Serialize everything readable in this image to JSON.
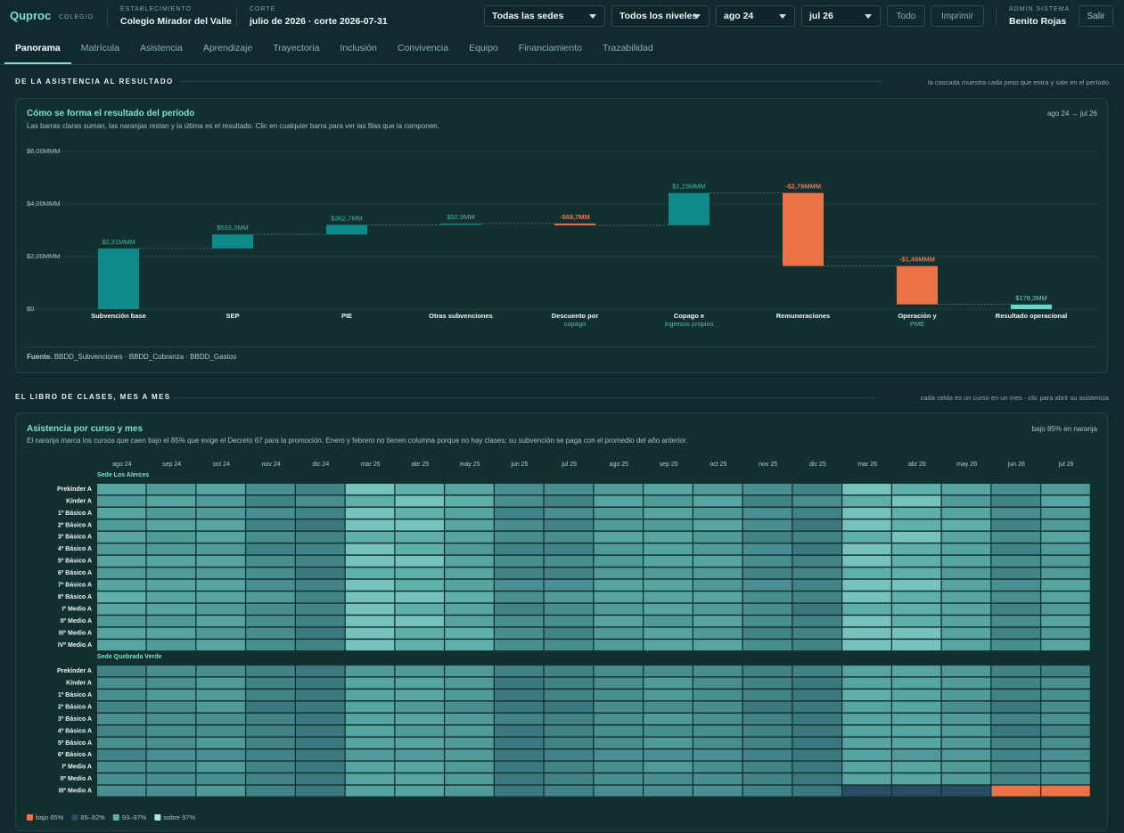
{
  "header": {
    "brand": "Quproc",
    "brand_sub": "COLEGIO",
    "school_label": "ESTABLECIMIENTO",
    "school": "Colegio Mirador del Valle",
    "cut_label": "CORTE",
    "cut": "julio de 2026 · corte 2026-07-31",
    "filters": [
      "Todas las sedes",
      "Todos los niveles",
      "ago 24",
      "jul 26"
    ],
    "buttons": [
      "Todo",
      "Imprimir"
    ],
    "user_role": "ADMIN SISTEMA",
    "user_name": "Benito Rojas",
    "logout": "Salir"
  },
  "tabs": [
    "Panorama",
    "Matrícula",
    "Asistencia",
    "Aprendizaje",
    "Trayectoria",
    "Inclusión",
    "Convivencia",
    "Equipo",
    "Financiamiento",
    "Trazabilidad"
  ],
  "active_tab": 0,
  "sections": [
    {
      "title": "DE LA ASISTENCIA AL RESULTADO",
      "note": "la cascada muestra cada peso que entra y sale en el período"
    },
    {
      "title": "EL LIBRO DE CLASES, MES A MES",
      "note": "cada celda es un curso en un mes · clic para abrir su asistencia"
    }
  ],
  "cards": [
    {
      "title": "Cómo se forma el resultado del período",
      "subtitle": "Las barras claras suman, las naranjas restan y la última es el resultado. Clic en cualquier barra para ver las filas que la componen.",
      "range": "ago 24 → jul 26",
      "source_label": "Fuente.",
      "source": "BBDD_Subvenciones · BBDD_Cobranza · BBDD_Gastos"
    },
    {
      "title": "Asistencia por curso y mes",
      "subtitle": "El naranja marca los cursos que caen bajo el 85% que exige el Decreto 67 para la promoción. Enero y febrero no tienen columna porque no hay clases; su subvención se paga con el promedio del año anterior.",
      "note": "bajo 85% en naranja"
    }
  ],
  "chart_data": [
    {
      "type": "waterfall",
      "categories": [
        "Subvención base",
        "SEP",
        "PIE",
        "Otras subvenciones",
        "Descuento por",
        "Copago e",
        "Remuneraciones",
        "Operación y",
        "Resultado operacional"
      ],
      "category_notes": [
        null,
        null,
        null,
        null,
        "copago",
        "ingresos propios",
        null,
        "PME",
        null
      ],
      "values": [
        2310,
        533.3,
        362.7,
        52.9,
        -68.7,
        1230,
        -2780,
        -1460,
        176.3
      ],
      "value_labels": [
        "$2,31MMM",
        "$533,3MM",
        "$362,7MM",
        "$52,9MM",
        "-$68,7MM",
        "$1,23MMM",
        "-$2,78MMM",
        "-$1,46MMM",
        "$176,3MM"
      ],
      "colors": {
        "increase": "#0e8a8a",
        "decrease": "#ea7448",
        "total": "#63d8ca"
      },
      "ylim": [
        0,
        6000
      ],
      "yticks": [
        {
          "value": 0,
          "label": "$0"
        },
        {
          "value": 2000,
          "label": "$2,00MMM"
        },
        {
          "value": 4000,
          "label": "$4,00MMM"
        },
        {
          "value": 6000,
          "label": "$6,00MMM"
        }
      ],
      "grid": true
    },
    {
      "type": "heatmap",
      "x": [
        "ago 24",
        "sep 24",
        "oct 24",
        "nov 24",
        "dic 24",
        "mar 25",
        "abr 25",
        "may 25",
        "jun 25",
        "jul 25",
        "ago 25",
        "sep 25",
        "oct 25",
        "nov 25",
        "dic 25",
        "mar 26",
        "abr 26",
        "may 26",
        "jun 26",
        "jul 26"
      ],
      "groups": [
        {
          "name": "Sede Los Alerces",
          "rows": [
            "Prekínder A",
            "Kínder A",
            "1º Básico A",
            "2º Básico A",
            "3º Básico A",
            "4º Básico A",
            "5º Básico A",
            "6º Básico A",
            "7º Básico A",
            "8º Básico A",
            "Iº Medio A",
            "IIº Medio A",
            "IIIº Medio A",
            "IVº Medio A"
          ],
          "values": [
            [
              96,
              95,
              96,
              94,
              93,
              98,
              97,
              96,
              94,
              94,
              95,
              96,
              95,
              94,
              93,
              98,
              97,
              96,
              94,
              95
            ],
            [
              95,
              96,
              95,
              93,
              94,
              97,
              98,
              97,
              94,
              93,
              96,
              95,
              96,
              93,
              94,
              97,
              98,
              95,
              93,
              96
            ],
            [
              96,
              95,
              95,
              94,
              93,
              98,
              97,
              96,
              93,
              94,
              95,
              96,
              95,
              94,
              93,
              98,
              97,
              96,
              94,
              95
            ],
            [
              95,
              96,
              96,
              93,
              92,
              98,
              98,
              96,
              94,
              93,
              95,
              95,
              96,
              94,
              92,
              98,
              97,
              97,
              93,
              95
            ],
            [
              96,
              95,
              96,
              94,
              93,
              97,
              97,
              96,
              94,
              94,
              96,
              96,
              95,
              93,
              93,
              97,
              98,
              96,
              94,
              96
            ],
            [
              95,
              95,
              95,
              93,
              93,
              98,
              97,
              95,
              93,
              93,
              95,
              96,
              95,
              94,
              92,
              98,
              97,
              96,
              93,
              95
            ],
            [
              96,
              96,
              96,
              94,
              93,
              98,
              98,
              96,
              94,
              94,
              95,
              96,
              96,
              94,
              93,
              98,
              97,
              96,
              94,
              95
            ],
            [
              95,
              95,
              95,
              94,
              92,
              97,
              97,
              96,
              93,
              93,
              95,
              95,
              95,
              93,
              93,
              97,
              97,
              95,
              93,
              95
            ],
            [
              96,
              96,
              96,
              94,
              93,
              98,
              97,
              96,
              94,
              94,
              96,
              96,
              95,
              94,
              93,
              98,
              98,
              96,
              94,
              96
            ],
            [
              97,
              96,
              96,
              95,
              93,
              98,
              98,
              97,
              94,
              95,
              96,
              96,
              96,
              94,
              93,
              98,
              97,
              96,
              94,
              96
            ],
            [
              96,
              96,
              95,
              94,
              93,
              98,
              97,
              96,
              93,
              94,
              95,
              96,
              95,
              94,
              92,
              97,
              97,
              96,
              93,
              95
            ],
            [
              95,
              95,
              96,
              94,
              93,
              98,
              98,
              96,
              94,
              94,
              96,
              95,
              96,
              94,
              93,
              98,
              97,
              96,
              94,
              96
            ],
            [
              96,
              96,
              95,
              94,
              92,
              98,
              97,
              97,
              94,
              93,
              95,
              96,
              95,
              93,
              93,
              98,
              98,
              96,
              93,
              95
            ],
            [
              96,
              95,
              96,
              94,
              93,
              98,
              97,
              97,
              94,
              94,
              95,
              96,
              96,
              94,
              93,
              98,
              98,
              96,
              94,
              96
            ]
          ]
        },
        {
          "name": "Sede Quebrada Verde",
          "rows": [
            "Prekínder A",
            "Kínder A",
            "1º Básico A",
            "2º Básico A",
            "3º Básico A",
            "4º Básico A",
            "5º Básico A",
            "6º Básico A",
            "Iº Medio A",
            "IIº Medio A",
            "IIIº Medio A"
          ],
          "values": [
            [
              93,
              94,
              94,
              93,
              92,
              95,
              95,
              95,
              93,
              93,
              94,
              94,
              94,
              93,
              93,
              96,
              96,
              95,
              93,
              93
            ],
            [
              94,
              94,
              95,
              93,
              92,
              96,
              96,
              95,
              92,
              93,
              94,
              95,
              94,
              93,
              92,
              96,
              96,
              95,
              93,
              94
            ],
            [
              94,
              95,
              95,
              93,
              92,
              96,
              96,
              95,
              92,
              93,
              94,
              95,
              94,
              93,
              92,
              97,
              96,
              95,
              93,
              94
            ],
            [
              93,
              94,
              95,
              92,
              92,
              96,
              95,
              94,
              92,
              92,
              94,
              94,
              94,
              92,
              92,
              96,
              96,
              94,
              92,
              94
            ],
            [
              94,
              94,
              94,
              93,
              92,
              96,
              96,
              95,
              93,
              93,
              94,
              95,
              94,
              93,
              92,
              96,
              96,
              95,
              93,
              94
            ],
            [
              93,
              94,
              94,
              93,
              92,
              96,
              95,
              95,
              92,
              93,
              94,
              94,
              94,
              93,
              92,
              96,
              96,
              95,
              92,
              93
            ],
            [
              94,
              94,
              95,
              93,
              92,
              96,
              96,
              95,
              92,
              93,
              94,
              95,
              94,
              93,
              92,
              96,
              96,
              95,
              93,
              94
            ],
            [
              93,
              94,
              94,
              93,
              92,
              95,
              95,
              95,
              92,
              93,
              94,
              94,
              94,
              93,
              92,
              96,
              95,
              95,
              93,
              94
            ],
            [
              94,
              94,
              95,
              93,
              92,
              96,
              96,
              95,
              92,
              93,
              94,
              95,
              94,
              93,
              92,
              96,
              96,
              95,
              93,
              94
            ],
            [
              94,
              94,
              94,
              93,
              92,
              96,
              96,
              95,
              92,
              93,
              94,
              94,
              94,
              93,
              92,
              96,
              96,
              95,
              93,
              94
            ],
            [
              94,
              94,
              95,
              93,
              92,
              96,
              96,
              95,
              92,
              93,
              94,
              94,
              94,
              93,
              92,
              88,
              89,
              88,
              82,
              83
            ]
          ]
        }
      ],
      "legend": [
        {
          "label": "bajo 85%",
          "color": "#ea7448"
        },
        {
          "label": "85–92%",
          "color": "#2a4d66"
        },
        {
          "label": "93–97%",
          "color": "#5eb0aa"
        },
        {
          "label": "sobre 97%",
          "color": "#a3eadf"
        }
      ],
      "thresholds": [
        85,
        92,
        97
      ]
    }
  ]
}
